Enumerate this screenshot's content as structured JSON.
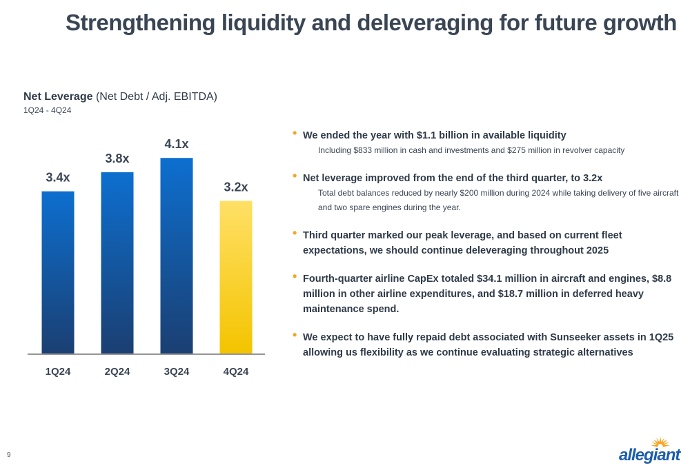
{
  "slide": {
    "title": "Strengthening liquidity and deleveraging for future growth",
    "page_number": "9",
    "logo_text": "allegiant"
  },
  "chart_header": {
    "bold": "Net Leverage",
    "rest": " (Net Debt / Adj. EBITDA)",
    "period": "1Q24 - 4Q24"
  },
  "chart_data": {
    "type": "bar",
    "categories": [
      "1Q24",
      "2Q24",
      "3Q24",
      "4Q24"
    ],
    "values": [
      3.4,
      3.8,
      4.1,
      3.2
    ],
    "data_labels": [
      "3.4x",
      "3.8x",
      "4.1x",
      "3.2x"
    ],
    "ylim": [
      0,
      5.1
    ],
    "title": "Net Leverage (Net Debt / Adj. EBITDA)",
    "xlabel": "",
    "ylabel": "",
    "colors": {
      "default_top": "#0d6fcf",
      "default_bottom": "#1b3f72",
      "highlight_top": "#ffe066",
      "highlight_bottom": "#f4c400",
      "highlight_index": 3,
      "label": "#3a4554",
      "axis": "#555555"
    }
  },
  "bullets": [
    {
      "main": "We ended the year with $1.1 billion in available liquidity",
      "sub": "Including $833 million in cash and investments and $275 million in revolver capacity"
    },
    {
      "main": "Net leverage improved from the end of the third quarter, to 3.2x",
      "sub": "Total debt balances reduced by nearly $200 million during 2024 while taking delivery of five aircraft and two spare engines during the year."
    },
    {
      "main": "Third quarter marked our peak leverage, and based on current fleet expectations, we should continue deleveraging throughout 2025",
      "sub": ""
    },
    {
      "main": "Fourth-quarter airline CapEx totaled $34.1 million in aircraft and engines, $8.8 million in other airline expenditures, and $18.7 million in deferred heavy maintenance spend.",
      "sub": ""
    },
    {
      "main": "We expect to have fully repaid debt associated with Sunseeker assets in 1Q25 allowing us flexibility as we continue evaluating strategic alternatives",
      "sub": ""
    }
  ],
  "colors": {
    "title": "#3a4554",
    "bullet_dot": "#f5a623",
    "brand_blue": "#1b5dab",
    "brand_orange": "#f5a623"
  }
}
